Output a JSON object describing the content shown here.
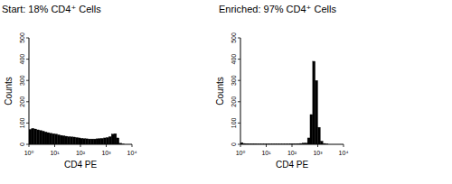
{
  "chart_data": [
    {
      "type": "histogram",
      "title": "Start: 18% CD4⁺ Cells",
      "x_label": "CD4 PE",
      "y_label": "Counts",
      "log": "x",
      "color": "#000000",
      "bins": [
        1,
        1.259,
        1.585,
        1.995,
        2.512,
        3.162,
        3.981,
        5.012,
        6.31,
        7.943,
        10,
        12.59,
        15.85,
        19.95,
        25.12,
        31.62,
        39.81,
        50.12,
        63.1,
        79.43,
        100,
        125.9,
        158.5,
        199.5,
        251.2,
        316.2,
        398.1,
        501.2,
        631,
        794.3,
        1000,
        1259,
        1585,
        1995,
        2512,
        3162,
        3981,
        5012,
        6310,
        7943,
        10000
      ],
      "counts": [
        70,
        75,
        72,
        68,
        65,
        62,
        58,
        55,
        52,
        50,
        48,
        45,
        42,
        40,
        38,
        36,
        35,
        34,
        32,
        30,
        28,
        27,
        26,
        25,
        25,
        25,
        26,
        27,
        28,
        30,
        32,
        36,
        48,
        50,
        30,
        5,
        1,
        0,
        0,
        0
      ],
      "xlim": [
        1,
        10000
      ],
      "xticks": [
        {
          "value": 1,
          "label": "10⁰"
        },
        {
          "value": 10,
          "label": "10¹"
        },
        {
          "value": 100,
          "label": "10²"
        },
        {
          "value": 1000,
          "label": "10³"
        },
        {
          "value": 10000,
          "label": "10⁴"
        }
      ],
      "ylim": [
        0,
        500
      ],
      "yticks": [
        0,
        100,
        200,
        300,
        400,
        500
      ]
    },
    {
      "type": "histogram",
      "title": "Enriched: 97% CD4⁺ Cells",
      "x_label": "CD4 PE",
      "y_label": "Counts",
      "log": "x",
      "color": "#000000",
      "bins": [
        1,
        1.259,
        1.585,
        1.995,
        2.512,
        3.162,
        3.981,
        5.012,
        6.31,
        7.943,
        10,
        12.59,
        15.85,
        19.95,
        25.12,
        31.62,
        39.81,
        50.12,
        63.1,
        79.43,
        100,
        125.9,
        158.5,
        199.5,
        251.2,
        316.2,
        398.1,
        501.2,
        631,
        794.3,
        1000,
        1259,
        1585,
        1995,
        2512,
        3162,
        3981,
        5012,
        6310,
        7943,
        10000
      ],
      "counts": [
        8,
        4,
        3,
        2,
        2,
        2,
        1,
        1,
        1,
        1,
        1,
        1,
        1,
        1,
        1,
        1,
        1,
        1,
        1,
        2,
        2,
        2,
        3,
        4,
        6,
        6,
        30,
        140,
        390,
        300,
        80,
        15,
        4,
        1,
        0,
        0,
        0,
        0,
        0,
        0
      ],
      "xlim": [
        1,
        10000
      ],
      "xticks": [
        {
          "value": 1,
          "label": "10⁰"
        },
        {
          "value": 10,
          "label": "10¹"
        },
        {
          "value": 100,
          "label": "10²"
        },
        {
          "value": 1000,
          "label": "10³"
        },
        {
          "value": 10000,
          "label": "10⁴"
        }
      ],
      "ylim": [
        0,
        500
      ],
      "yticks": [
        0,
        100,
        200,
        300,
        400,
        500
      ]
    }
  ]
}
